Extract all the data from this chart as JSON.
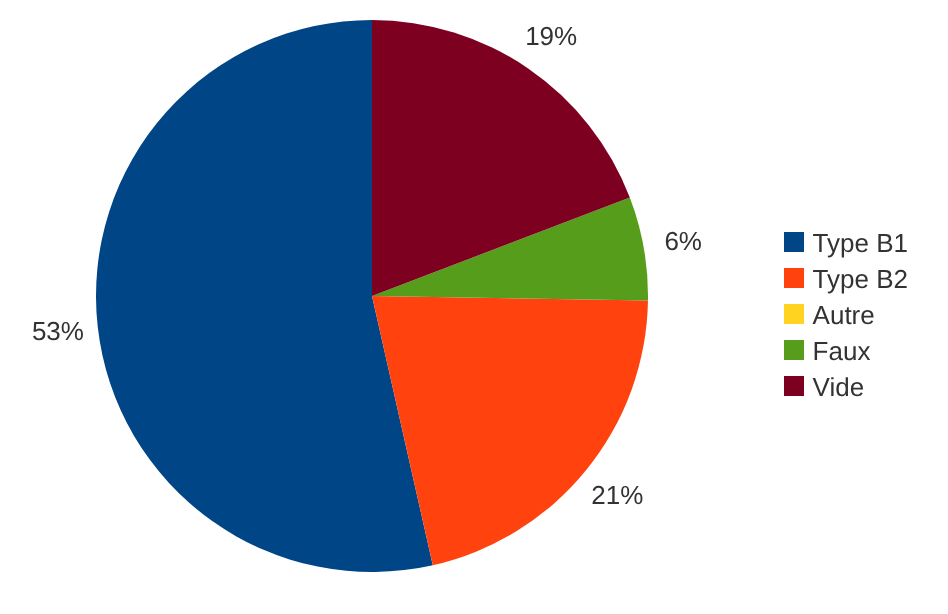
{
  "chart_data": {
    "type": "pie",
    "categories": [
      "Type B1",
      "Type B2",
      "Autre",
      "Faux",
      "Vide"
    ],
    "values": [
      53,
      21,
      0,
      6,
      19
    ],
    "colors": [
      "#004586",
      "#ff420e",
      "#ffd320",
      "#579d1c",
      "#7e0021"
    ],
    "value_labels": [
      "53%",
      "21%",
      null,
      "6%",
      "19%"
    ],
    "legend": "right"
  }
}
